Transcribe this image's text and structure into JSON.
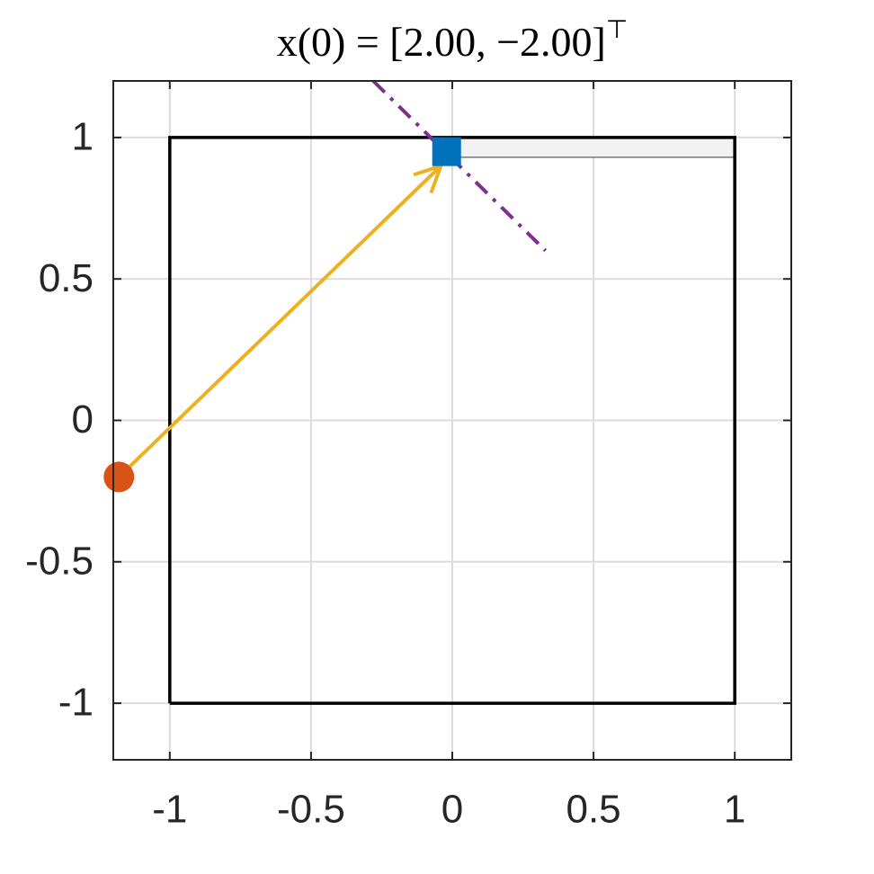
{
  "chart_data": {
    "type": "line",
    "title": "x(0) = [2.00, −2.00]",
    "title_superscript": "⊤",
    "xlim": [
      -1.2,
      1.2
    ],
    "ylim": [
      -1.2,
      1.2
    ],
    "xticks": [
      -1,
      -0.5,
      0,
      0.5,
      1
    ],
    "yticks": [
      -1,
      -0.5,
      0,
      0.5,
      1
    ],
    "grid": true,
    "regions": [
      {
        "x": [
          0,
          1
        ],
        "y": [
          0.93,
          1
        ],
        "color": "#f2f2f2"
      }
    ],
    "series": [
      {
        "color": "#000000",
        "style": "solid",
        "x": [
          -1,
          1,
          1,
          -1,
          -1
        ],
        "values": [
          -1,
          -1,
          1,
          1,
          -1
        ]
      },
      {
        "color": "#7e2f8e",
        "style": "dashdot",
        "x": [
          -0.28,
          0.33
        ],
        "values": [
          1.2,
          0.6
        ]
      }
    ],
    "arrows": [
      {
        "color": "#edb120",
        "x": [
          -1.18,
          -0.04
        ],
        "y": [
          -0.2,
          0.9
        ]
      }
    ],
    "points": [
      {
        "marker": "circle",
        "color": "#d95319",
        "x": -1.18,
        "y": -0.2
      },
      {
        "marker": "square",
        "color": "#0072bd",
        "x": -0.02,
        "y": 0.95
      }
    ]
  }
}
